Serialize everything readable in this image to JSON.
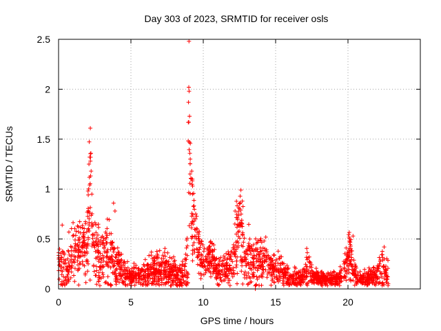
{
  "chart_data": {
    "type": "scatter",
    "title": "Day 303 of 2023, SRMTID for receiver osls",
    "xlabel": "GPS time / hours",
    "ylabel": "SRMTID / TECUs",
    "xlim": [
      0,
      25
    ],
    "ylim": [
      0,
      2.5
    ],
    "x_ticks": [
      0,
      5,
      10,
      15,
      20
    ],
    "y_ticks": [
      0,
      0.5,
      1,
      1.5,
      2,
      2.5
    ],
    "y_tick_labels": [
      "0",
      "0.5",
      "1",
      "1.5",
      "2",
      "2.5"
    ],
    "grid": true,
    "marker": "+",
    "series_color": "#ff0000",
    "envelope": {
      "x": [
        0.0,
        0.3,
        0.5,
        0.8,
        1.0,
        1.3,
        1.6,
        1.8,
        2.0,
        2.1,
        2.2,
        2.3,
        2.4,
        2.6,
        2.8,
        3.0,
        3.2,
        3.4,
        3.6,
        3.8,
        4.0,
        4.2,
        4.5,
        5.0,
        5.5,
        6.0,
        6.5,
        7.0,
        7.5,
        8.0,
        8.4,
        8.7,
        8.9,
        9.0,
        9.05,
        9.1,
        9.2,
        9.3,
        9.5,
        9.7,
        9.9,
        10.2,
        10.5,
        11.0,
        11.5,
        12.0,
        12.2,
        12.4,
        12.55,
        12.7,
        12.9,
        13.2,
        13.5,
        13.8,
        14.0,
        14.3,
        14.6,
        15.0,
        15.5,
        16.0,
        16.5,
        17.0,
        17.2,
        17.5,
        18.0,
        18.5,
        19.0,
        19.5,
        19.9,
        20.1,
        20.3,
        20.6,
        21.0,
        21.5,
        22.0,
        22.3,
        22.5,
        22.8
      ],
      "center": [
        0.25,
        0.18,
        0.15,
        0.3,
        0.35,
        0.38,
        0.42,
        0.38,
        0.45,
        0.7,
        0.85,
        0.7,
        0.45,
        0.35,
        0.3,
        0.3,
        0.32,
        0.35,
        0.3,
        0.28,
        0.25,
        0.2,
        0.15,
        0.12,
        0.12,
        0.15,
        0.18,
        0.2,
        0.18,
        0.15,
        0.12,
        0.12,
        0.3,
        1.2,
        1.5,
        1.0,
        0.8,
        0.65,
        0.5,
        0.4,
        0.3,
        0.3,
        0.3,
        0.2,
        0.18,
        0.25,
        0.4,
        0.55,
        0.65,
        0.45,
        0.3,
        0.3,
        0.3,
        0.25,
        0.25,
        0.28,
        0.22,
        0.2,
        0.15,
        0.12,
        0.1,
        0.12,
        0.2,
        0.15,
        0.1,
        0.1,
        0.1,
        0.12,
        0.2,
        0.35,
        0.25,
        0.12,
        0.1,
        0.12,
        0.15,
        0.18,
        0.2,
        0.15
      ],
      "spread": [
        0.15,
        0.12,
        0.08,
        0.15,
        0.15,
        0.18,
        0.18,
        0.15,
        0.25,
        0.4,
        0.45,
        0.35,
        0.2,
        0.2,
        0.15,
        0.18,
        0.2,
        0.25,
        0.2,
        0.15,
        0.15,
        0.1,
        0.08,
        0.06,
        0.06,
        0.08,
        0.1,
        0.1,
        0.1,
        0.1,
        0.08,
        0.08,
        0.2,
        0.8,
        0.5,
        0.25,
        0.25,
        0.2,
        0.15,
        0.15,
        0.12,
        0.1,
        0.12,
        0.08,
        0.08,
        0.12,
        0.2,
        0.25,
        0.3,
        0.2,
        0.15,
        0.18,
        0.18,
        0.15,
        0.15,
        0.15,
        0.1,
        0.1,
        0.08,
        0.06,
        0.05,
        0.05,
        0.12,
        0.06,
        0.04,
        0.04,
        0.04,
        0.05,
        0.1,
        0.15,
        0.1,
        0.05,
        0.04,
        0.05,
        0.06,
        0.12,
        0.1,
        0.08
      ]
    },
    "highlight_points": [
      {
        "x": 9.0,
        "y": 2.02
      },
      {
        "x": 9.02,
        "y": 1.98
      },
      {
        "x": 8.98,
        "y": 1.87
      },
      {
        "x": 9.05,
        "y": 1.73
      },
      {
        "x": 9.0,
        "y": 1.67
      },
      {
        "x": 9.05,
        "y": 1.47
      },
      {
        "x": 9.1,
        "y": 1.3
      },
      {
        "x": 9.2,
        "y": 1.18
      },
      {
        "x": 9.25,
        "y": 1.1
      },
      {
        "x": 2.15,
        "y": 1.32
      },
      {
        "x": 2.2,
        "y": 1.28
      },
      {
        "x": 2.1,
        "y": 1.25
      },
      {
        "x": 2.25,
        "y": 1.18
      },
      {
        "x": 2.3,
        "y": 0.95
      },
      {
        "x": 3.8,
        "y": 0.86
      },
      {
        "x": 3.9,
        "y": 0.78
      },
      {
        "x": 12.6,
        "y": 0.99
      },
      {
        "x": 12.55,
        "y": 0.93
      },
      {
        "x": 12.7,
        "y": 0.88
      },
      {
        "x": 12.2,
        "y": 0.78
      },
      {
        "x": 20.35,
        "y": 0.53
      },
      {
        "x": 20.1,
        "y": 0.48
      },
      {
        "x": 22.5,
        "y": 0.42
      },
      {
        "x": 0.25,
        "y": 0.64
      },
      {
        "x": 13.6,
        "y": 0.0
      }
    ],
    "point_count": 2200
  }
}
